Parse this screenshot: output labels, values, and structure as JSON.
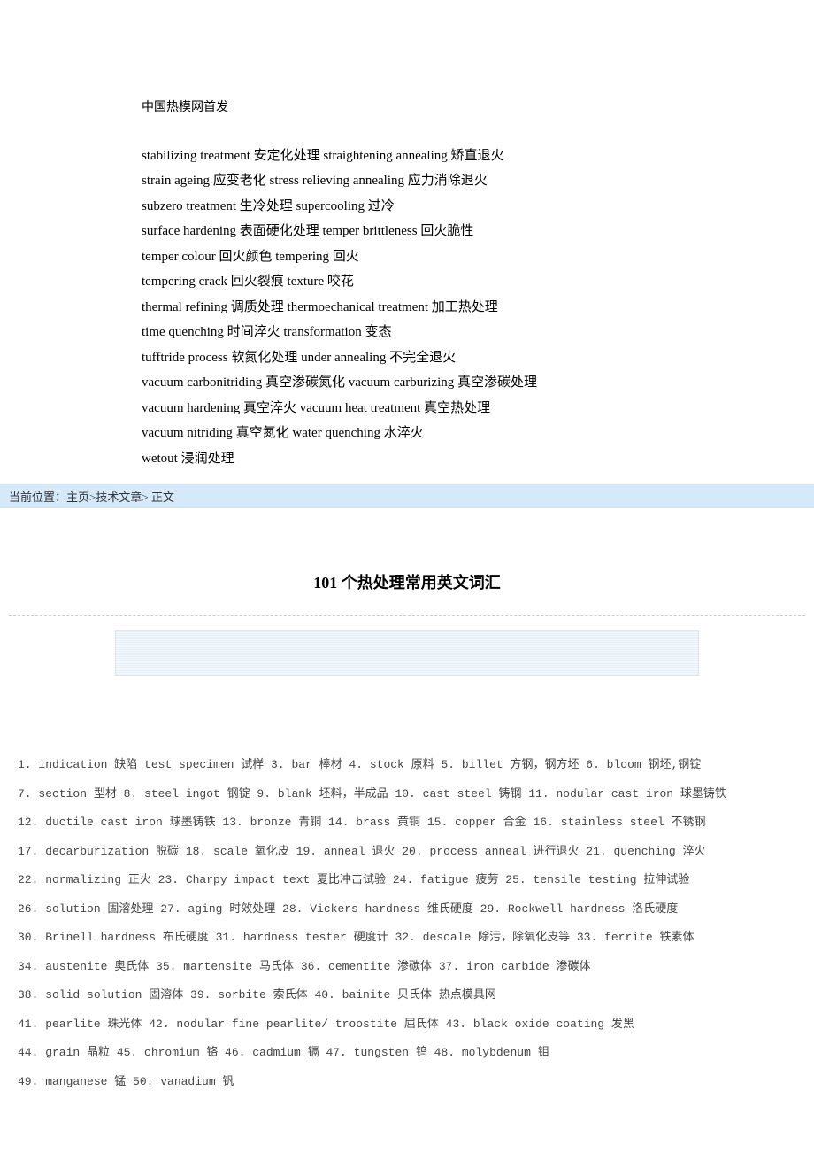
{
  "header": {
    "source": "中国热模网首发",
    "lines": [
      "stabilizing treatment  安定化处理  straightening annealing  矫直退火",
      "strain ageing  应变老化  stress relieving annealing  应力消除退火",
      "subzero treatment  生冷处理  supercooling  过冷",
      "surface hardening  表面硬化处理  temper brittleness  回火脆性",
      "temper colour  回火颜色  tempering  回火",
      "tempering crack  回火裂痕  texture  咬花",
      "thermal refining  调质处理  thermoechanical treatment  加工热处理",
      "time quenching  时间淬火  transformation  变态",
      "tufftride process  软氮化处理  under annealing  不完全退火",
      "vacuum carbonitriding  真空渗碳氮化  vacuum carburizing  真空渗碳处理",
      "vacuum hardening  真空淬火  vacuum heat treatment  真空热处理",
      "vacuum nitriding  真空氮化  water quenching  水淬火",
      "wetout  浸润处理"
    ]
  },
  "breadcrumb": {
    "prefix": "当前位置：",
    "home": "主页",
    "sep1": ">",
    "cat": "技术文章",
    "sep2": ">",
    "tail": " 正文"
  },
  "article": {
    "title": "101 个热处理常用英文词汇"
  },
  "vocab": {
    "lines": [
      "1. indication 缺陷  test specimen 试样 3. bar 棒材 4. stock 原料 5. billet 方钢，钢方坯 6. bloom 钢坯,钢锭",
      "7. section 型材 8. steel ingot 钢锭 9. blank 坯料，半成品 10. cast steel 铸钢 11. nodular cast iron 球墨铸铁",
      "12. ductile cast iron 球墨铸铁 13. bronze 青铜 14. brass 黄铜 15. copper 合金 16. stainless steel 不锈钢",
      "17. decarburization 脱碳 18. scale 氧化皮 19. anneal 退火 20. process anneal 进行退火 21. quenching 淬火",
      "22. normalizing 正火 23. Charpy impact text 夏比冲击试验 24. fatigue 疲劳 25. tensile testing 拉伸试验",
      "26. solution 固溶处理 27. aging 时效处理 28. Vickers hardness 维氏硬度 29. Rockwell hardness 洛氏硬度",
      "30. Brinell hardness 布氏硬度 31. hardness tester 硬度计 32. descale 除污，除氧化皮等 33. ferrite 铁素体",
      "34. austenite 奥氏体 35. martensite 马氏体 36. cementite 渗碳体 37. iron carbide 渗碳体",
      "38. solid solution 固溶体 39. sorbite 索氏体 40. bainite 贝氏体 热点模具网",
      "41. pearlite 珠光体 42. nodular fine pearlite/ troostite 屈氏体 43. black oxide coating 发黑",
      "44. grain 晶粒 45. chromium 铬 46. cadmium 镉 47. tungsten 钨 48. molybdenum 钼",
      "49. manganese 锰 50. vanadium 钒"
    ]
  }
}
